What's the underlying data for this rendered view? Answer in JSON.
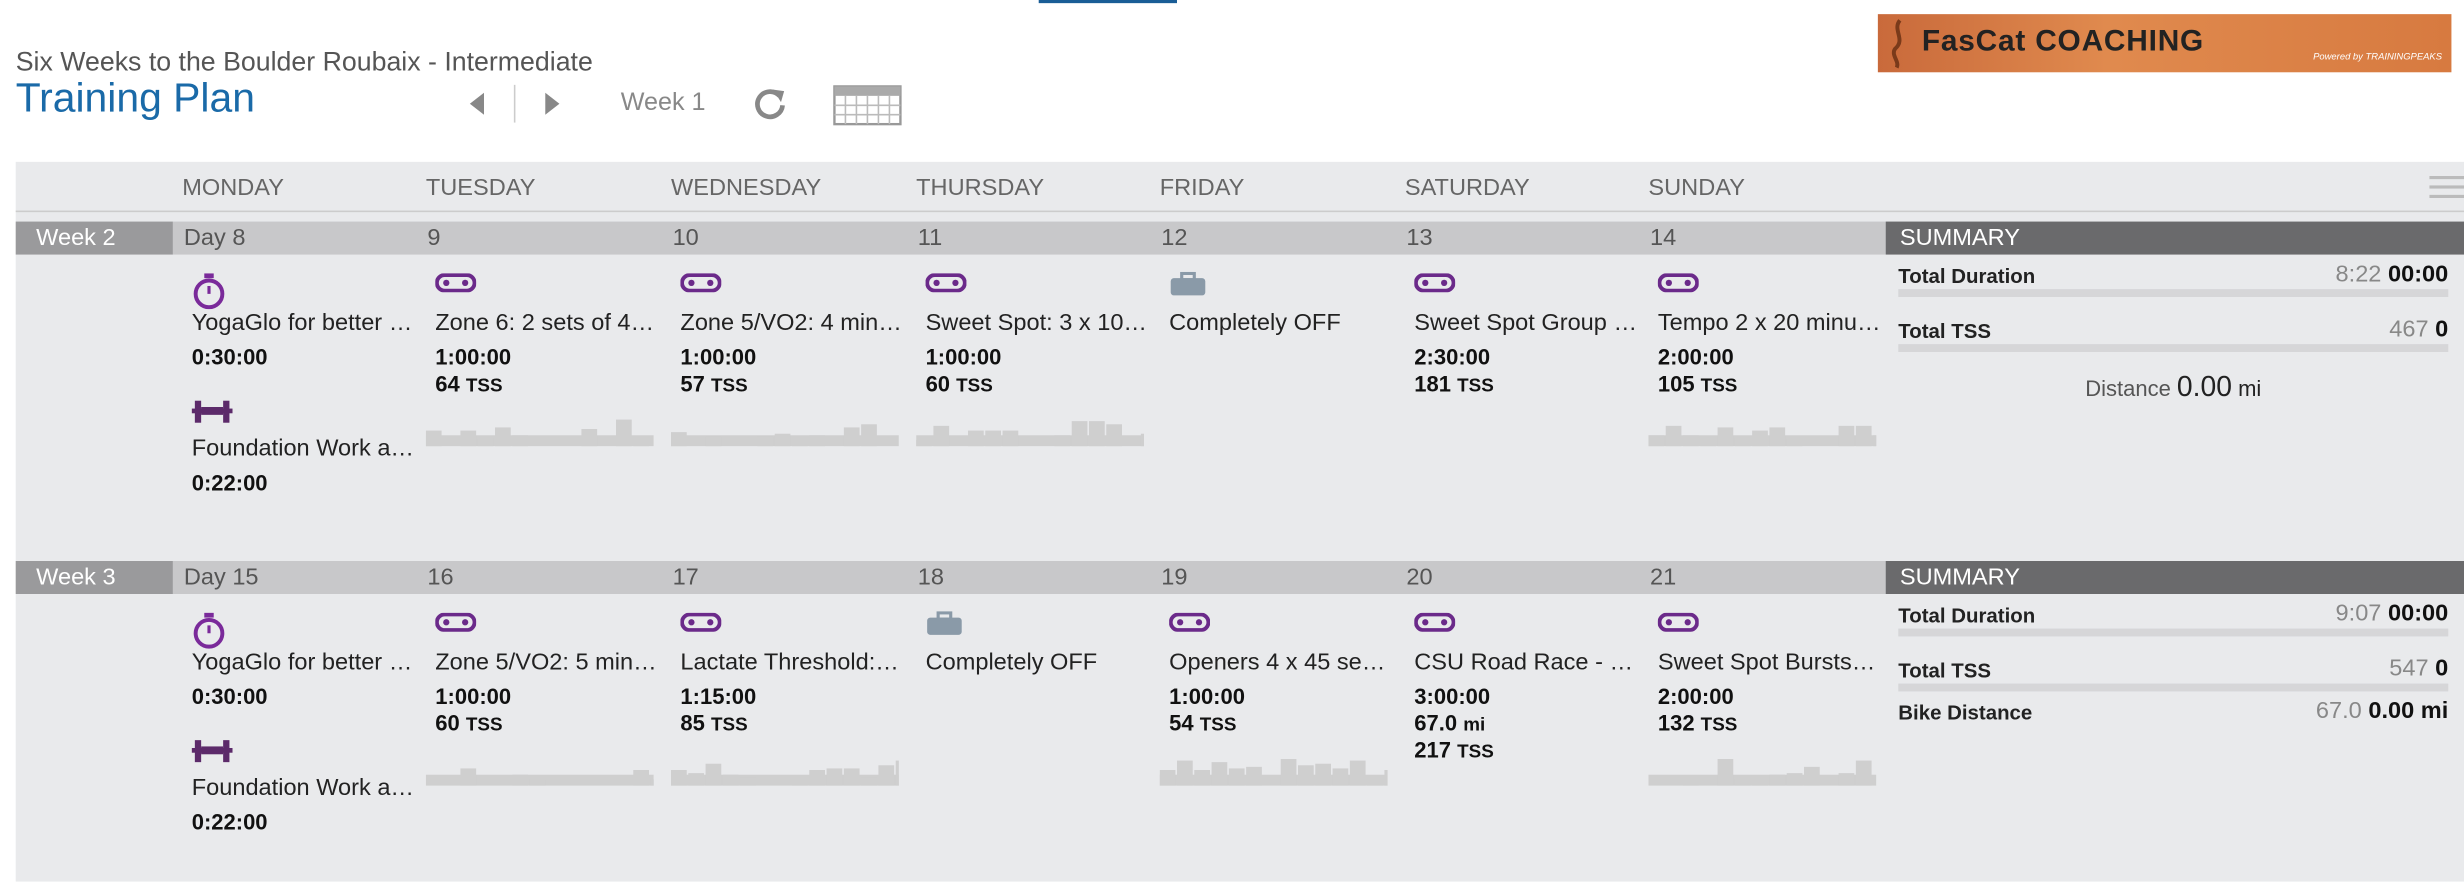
{
  "header": {
    "subtitle": "Six Weeks to the Boulder Roubaix - Intermediate",
    "title": "Training Plan",
    "week_label": "Week 1",
    "logo": "FasCat COACHING",
    "logo_powered": "Powered by TRAININGPEAKS"
  },
  "units": {
    "tss": "TSS",
    "mi": "mi"
  },
  "day_headers": [
    "MONDAY",
    "TUESDAY",
    "WEDNESDAY",
    "THURSDAY",
    "FRIDAY",
    "SATURDAY",
    "SUNDAY"
  ],
  "weeks": [
    {
      "label": "Week 2",
      "days": [
        {
          "label": "Day 8",
          "workouts": [
            {
              "icon": "yoga",
              "title": "YogaGlo for better …",
              "duration": "0:30:00"
            },
            {
              "icon": "strength",
              "title": "Foundation Work a…",
              "duration": "0:22:00"
            }
          ]
        },
        {
          "label": "9",
          "workouts": [
            {
              "icon": "bike",
              "title": "Zone 6: 2 sets of 4…",
              "duration": "1:00:00",
              "tss": "64",
              "profile": true
            }
          ]
        },
        {
          "label": "10",
          "workouts": [
            {
              "icon": "bike",
              "title": "Zone 5/VO2: 4 min…",
              "duration": "1:00:00",
              "tss": "57",
              "profile": true
            }
          ]
        },
        {
          "label": "11",
          "workouts": [
            {
              "icon": "bike",
              "title": "Sweet Spot: 3 x 10…",
              "duration": "1:00:00",
              "tss": "60",
              "profile": true
            }
          ]
        },
        {
          "label": "12",
          "workouts": [
            {
              "icon": "off",
              "title": "Completely OFF"
            }
          ]
        },
        {
          "label": "13",
          "workouts": [
            {
              "icon": "bike",
              "title": "Sweet Spot Group …",
              "duration": "2:30:00",
              "tss": "181"
            }
          ]
        },
        {
          "label": "14",
          "workouts": [
            {
              "icon": "bike",
              "title": "Tempo 2 x 20 minu…",
              "duration": "2:00:00",
              "tss": "105",
              "profile": true
            }
          ]
        }
      ],
      "summary": {
        "title": "SUMMARY",
        "rows": [
          {
            "label": "Total Duration",
            "planned": "8:22",
            "actual": "00:00"
          },
          {
            "label": "Total TSS",
            "planned": "467",
            "actual": "0"
          }
        ],
        "distance": {
          "label": "Distance",
          "value": "0.00",
          "unit": "mi"
        }
      }
    },
    {
      "label": "Week 3",
      "days": [
        {
          "label": "Day 15",
          "workouts": [
            {
              "icon": "yoga",
              "title": "YogaGlo for better …",
              "duration": "0:30:00"
            },
            {
              "icon": "strength",
              "title": "Foundation Work a…",
              "duration": "0:22:00"
            }
          ]
        },
        {
          "label": "16",
          "workouts": [
            {
              "icon": "bike",
              "title": "Zone 5/VO2: 5 min…",
              "duration": "1:00:00",
              "tss": "60",
              "profile": true
            }
          ]
        },
        {
          "label": "17",
          "workouts": [
            {
              "icon": "bike",
              "title": "Lactate Threshold:…",
              "duration": "1:15:00",
              "tss": "85",
              "profile": true
            }
          ]
        },
        {
          "label": "18",
          "workouts": [
            {
              "icon": "off",
              "title": "Completely OFF"
            }
          ]
        },
        {
          "label": "19",
          "workouts": [
            {
              "icon": "bike",
              "title": "Openers 4 x 45 se…",
              "duration": "1:00:00",
              "tss": "54",
              "profile": true
            }
          ]
        },
        {
          "label": "20",
          "workouts": [
            {
              "icon": "bike",
              "title": "CSU Road Race - …",
              "duration": "3:00:00",
              "distance": "67.0",
              "tss": "217"
            }
          ]
        },
        {
          "label": "21",
          "workouts": [
            {
              "icon": "bike",
              "title": "Sweet Spot Bursts…",
              "duration": "2:00:00",
              "tss": "132",
              "profile": true
            }
          ]
        }
      ],
      "summary": {
        "title": "SUMMARY",
        "rows": [
          {
            "label": "Total Duration",
            "planned": "9:07",
            "actual": "00:00"
          },
          {
            "label": "Total TSS",
            "planned": "547",
            "actual": "0"
          },
          {
            "label": "Bike Distance",
            "planned": "67.0",
            "actual": "0.00 mi"
          }
        ]
      }
    }
  ]
}
